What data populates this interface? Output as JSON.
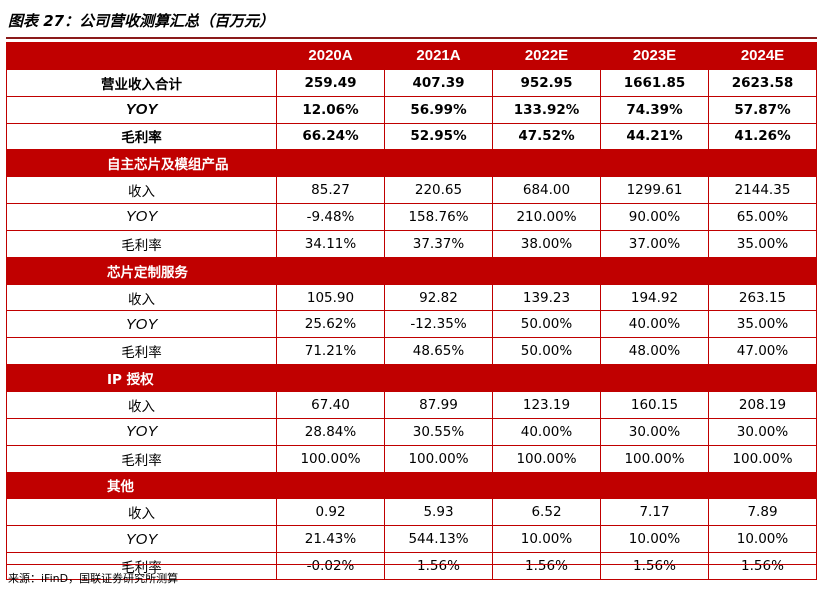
{
  "title": "图表 27：公司营收测算汇总（百万元）",
  "header": [
    "",
    "2020A",
    "2021A",
    "2022E",
    "2023E",
    "2024E"
  ],
  "top_rows": [
    {
      "label": "营业收入合计",
      "values": [
        "259.49",
        "407.39",
        "952.95",
        "1661.85",
        "2623.58"
      ],
      "kind": "bold"
    },
    {
      "label": "YOY",
      "values": [
        "12.06%",
        "56.99%",
        "133.92%",
        "74.39%",
        "57.87%"
      ],
      "kind": "yoy-bold"
    },
    {
      "label": "毛利率",
      "values": [
        "66.24%",
        "52.95%",
        "47.52%",
        "44.21%",
        "41.26%"
      ],
      "kind": "bold"
    }
  ],
  "sections": [
    {
      "name": "自主芯片及模组产品",
      "rows": [
        {
          "label": "收入",
          "values": [
            "85.27",
            "220.65",
            "684.00",
            "1299.61",
            "2144.35"
          ]
        },
        {
          "label": "YOY",
          "values": [
            "-9.48%",
            "158.76%",
            "210.00%",
            "90.00%",
            "65.00%"
          ]
        },
        {
          "label": "毛利率",
          "values": [
            "34.11%",
            "37.37%",
            "38.00%",
            "37.00%",
            "35.00%"
          ]
        }
      ]
    },
    {
      "name": "芯片定制服务",
      "rows": [
        {
          "label": "收入",
          "values": [
            "105.90",
            "92.82",
            "139.23",
            "194.92",
            "263.15"
          ]
        },
        {
          "label": "YOY",
          "values": [
            "25.62%",
            "-12.35%",
            "50.00%",
            "40.00%",
            "35.00%"
          ]
        },
        {
          "label": "毛利率",
          "values": [
            "71.21%",
            "48.65%",
            "50.00%",
            "48.00%",
            "47.00%"
          ]
        }
      ]
    },
    {
      "name": "IP 授权",
      "rows": [
        {
          "label": "收入",
          "values": [
            "67.40",
            "87.99",
            "123.19",
            "160.15",
            "208.19"
          ]
        },
        {
          "label": "YOY",
          "values": [
            "28.84%",
            "30.55%",
            "40.00%",
            "30.00%",
            "30.00%"
          ]
        },
        {
          "label": "毛利率",
          "values": [
            "100.00%",
            "100.00%",
            "100.00%",
            "100.00%",
            "100.00%"
          ]
        }
      ]
    },
    {
      "name": "其他",
      "rows": [
        {
          "label": "收入",
          "values": [
            "0.92",
            "5.93",
            "6.52",
            "7.17",
            "7.89"
          ]
        },
        {
          "label": "YOY",
          "values": [
            "21.43%",
            "544.13%",
            "10.00%",
            "10.00%",
            "10.00%"
          ]
        },
        {
          "label": "毛利率",
          "values": [
            "-0.02%",
            "1.56%",
            "1.56%",
            "1.56%",
            "1.56%"
          ]
        }
      ]
    }
  ],
  "source": "来源：iFinD，国联证券研究所测算"
}
